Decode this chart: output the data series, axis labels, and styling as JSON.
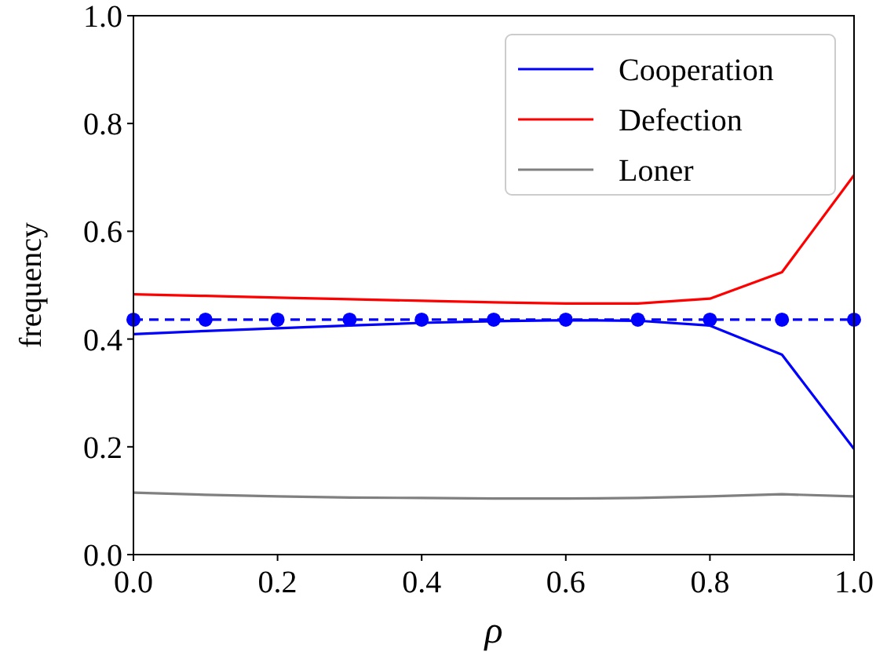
{
  "chart_data": {
    "type": "line",
    "xlabel": "ρ",
    "ylabel": "frequency",
    "x": [
      0,
      0.1,
      0.2,
      0.3,
      0.4,
      0.5,
      0.6,
      0.7,
      0.8,
      0.9,
      1.0
    ],
    "series": [
      {
        "name": "Cooperation",
        "color": "#0000ff",
        "values": [
          0.409,
          0.415,
          0.42,
          0.425,
          0.43,
          0.433,
          0.435,
          0.434,
          0.425,
          0.371,
          0.196
        ]
      },
      {
        "name": "Defection",
        "color": "#ff0000",
        "values": [
          0.483,
          0.48,
          0.477,
          0.474,
          0.471,
          0.468,
          0.466,
          0.466,
          0.475,
          0.524,
          0.704
        ]
      },
      {
        "name": "Loner",
        "color": "#808080",
        "values": [
          0.115,
          0.111,
          0.108,
          0.106,
          0.105,
          0.104,
          0.104,
          0.105,
          0.108,
          0.112,
          0.108
        ]
      },
      {
        "color": "#0000ff",
        "values": [
          0.436,
          0.436,
          0.436,
          0.436,
          0.436,
          0.436,
          0.436,
          0.436,
          0.436,
          0.436,
          0.436
        ],
        "line_style": "dashed",
        "marker": "circle"
      }
    ],
    "xlim": [
      0,
      1
    ],
    "ylim": [
      0,
      1
    ],
    "xticks": [
      {
        "value": 0,
        "label": "0.0"
      },
      0.2,
      0.4,
      0.6,
      0.8,
      {
        "value": 1,
        "label": "1.0"
      }
    ],
    "yticks": [
      {
        "value": 0,
        "label": "0.0"
      },
      0.2,
      0.4,
      0.6,
      0.8,
      {
        "value": 1,
        "label": "1.0"
      }
    ],
    "legend": "top right",
    "grid": false
  }
}
